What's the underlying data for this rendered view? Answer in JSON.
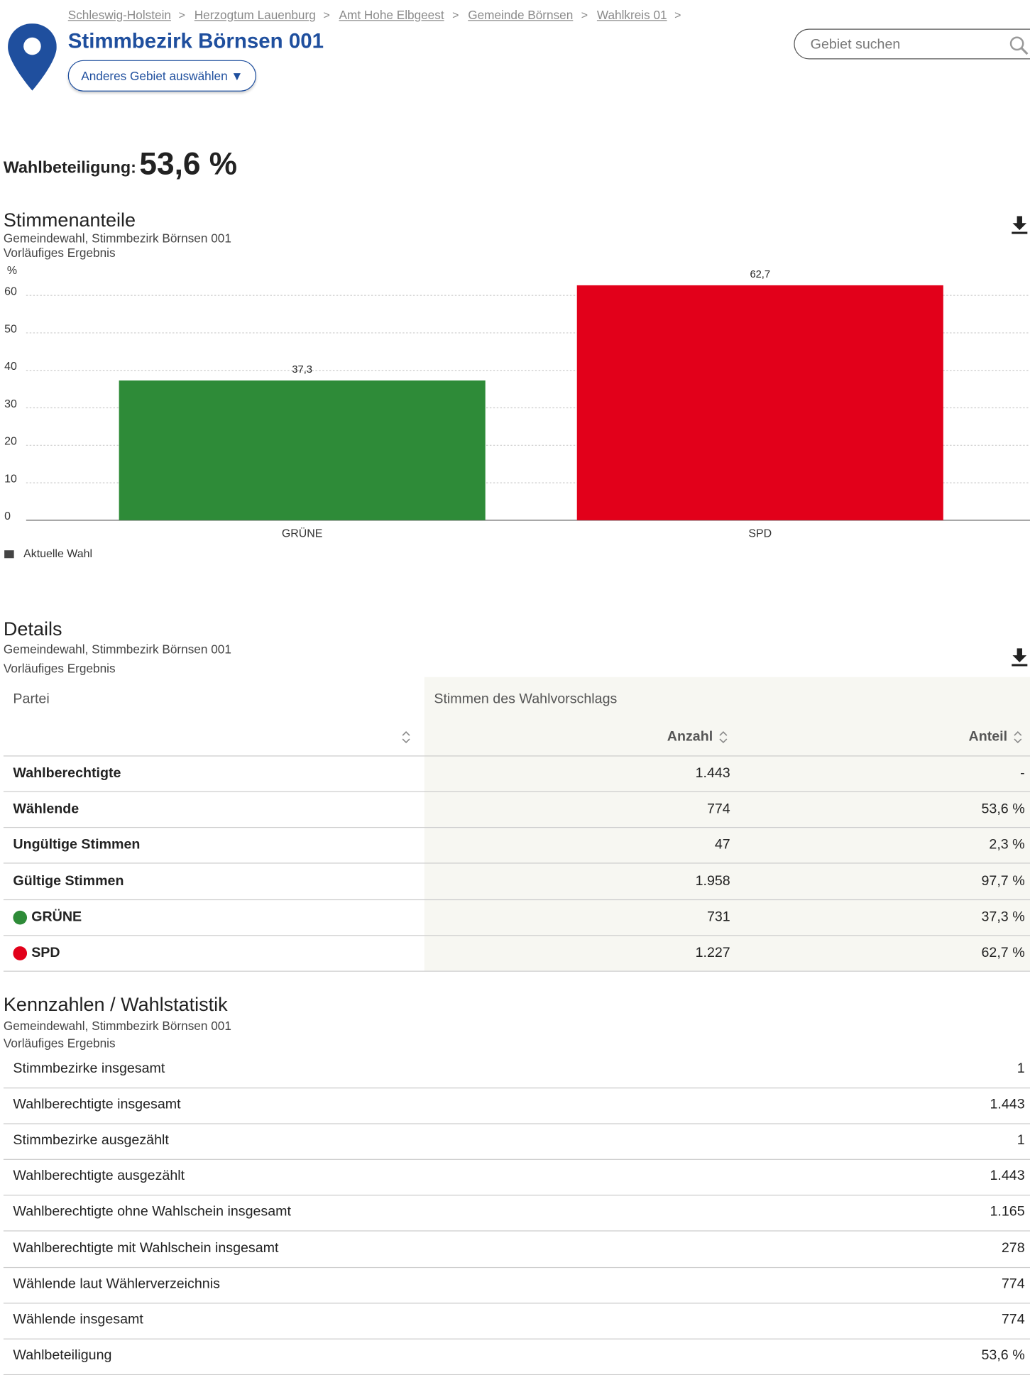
{
  "breadcrumb": {
    "items": [
      "Schleswig-Holstein",
      "Herzogtum Lauenburg",
      "Amt Hohe Elbgeest",
      "Gemeinde Börnsen",
      "Wahlkreis 01"
    ],
    "separator": ">"
  },
  "header": {
    "title": "Stimmbezirk Börnsen 001",
    "button": "Anderes Gebiet auswählen ▼",
    "search_placeholder": "Gebiet suchen"
  },
  "turnout": {
    "label": "Wahlbeteiligung:",
    "value": "53,6 %"
  },
  "chart_data": {
    "type": "bar",
    "title": "Stimmenanteile",
    "subtitle": "Gemeindewahl, Stimmbezirk Börnsen 001",
    "note": "Vorläufiges Ergebnis",
    "y_label": "%",
    "categories": [
      "GRÜNE",
      "SPD"
    ],
    "series": [
      {
        "name": "Aktuelle Wahl",
        "color": "#444444",
        "values": [
          37.3,
          62.7
        ],
        "value_labels": [
          "37,3",
          "62,7"
        ],
        "bar_colors": [
          "#2e8b38",
          "#e2001a"
        ]
      }
    ],
    "ylim": [
      0,
      65
    ],
    "yticks": [
      0,
      10,
      20,
      30,
      40,
      50,
      60
    ],
    "grid": true,
    "legend": "bottom-left"
  },
  "details": {
    "title": "Details",
    "subtitle": "Gemeindewahl, Stimmbezirk Börnsen 001",
    "note": "Vorläufiges Ergebnis",
    "columns": {
      "party": "Partei",
      "group": "Stimmen des Wahlvorschlags",
      "count": "Anzahl",
      "share": "Anteil"
    },
    "rows": [
      {
        "label": "Wahlberechtigte",
        "count": "1.443",
        "share": "-"
      },
      {
        "label": "Wählende",
        "count": "774",
        "share": "53,6 %"
      },
      {
        "label": "Ungültige Stimmen",
        "count": "47",
        "share": "2,3 %"
      },
      {
        "label": "Gültige Stimmen",
        "count": "1.958",
        "share": "97,7 %"
      },
      {
        "label": "GRÜNE",
        "count": "731",
        "share": "37,3 %",
        "color": "#2e8b38"
      },
      {
        "label": "SPD",
        "count": "1.227",
        "share": "62,7 %",
        "color": "#e2001a"
      }
    ]
  },
  "stats": {
    "title": "Kennzahlen / Wahlstatistik",
    "subtitle": "Gemeindewahl, Stimmbezirk Börnsen 001",
    "note": "Vorläufiges Ergebnis",
    "rows": [
      [
        "Stimmbezirke insgesamt",
        "1"
      ],
      [
        "Wahlberechtigte insgesamt",
        "1.443"
      ],
      [
        "Stimmbezirke ausgezählt",
        "1"
      ],
      [
        "Wahlberechtigte ausgezählt",
        "1.443"
      ],
      [
        "Wahlberechtigte ohne Wahlschein insgesamt",
        "1.165"
      ],
      [
        "Wahlberechtigte mit Wahlschein insgesamt",
        "278"
      ],
      [
        "Wählende laut Wählerverzeichnis",
        "774"
      ],
      [
        "Wählende insgesamt",
        "774"
      ],
      [
        "Wahlbeteiligung",
        "53,6 %"
      ]
    ]
  }
}
